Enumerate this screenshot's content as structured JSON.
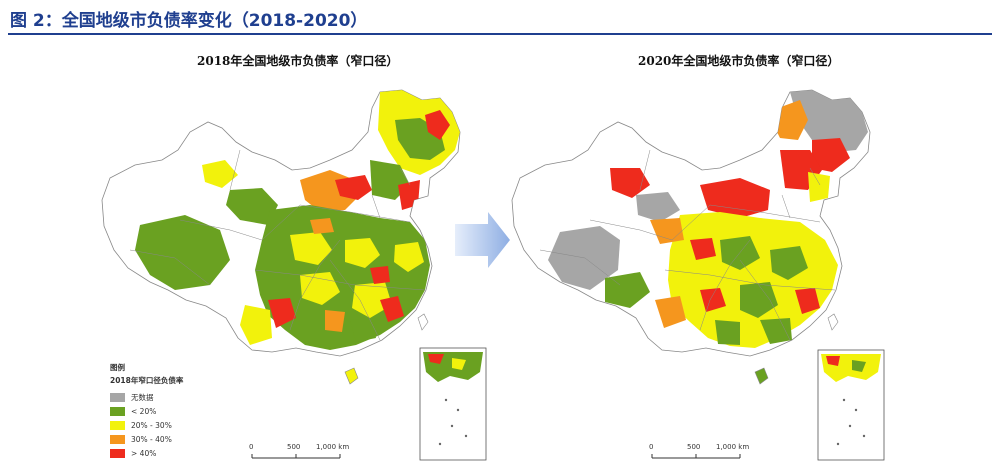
{
  "figure_title": "图 2：全国地级市负债率变化（2018-2020）",
  "maps": [
    {
      "title": "2018年全国地级市负债率（窄口径）"
    },
    {
      "title": "2020年全国地级市负债率（窄口径）"
    }
  ],
  "legend": {
    "heading": "图例",
    "subheading": "2018年窄口径负债率",
    "classes": [
      {
        "label": "无数据",
        "color": "#a6a6a6"
      },
      {
        "label": "< 20%",
        "color": "#6aa121"
      },
      {
        "label": "20% - 30%",
        "color": "#f2f20c"
      },
      {
        "label": "30% - 40%",
        "color": "#f5961e"
      },
      {
        "label": "> 40%",
        "color": "#ee2b1d"
      }
    ]
  },
  "scale_bar": {
    "labels": [
      "0",
      "500",
      "1,000 km"
    ]
  },
  "colors": {
    "title": "#1f3f8f",
    "arrow": "#9ab6e6",
    "no_fill": "#ffffff",
    "boundary": "#888888"
  }
}
